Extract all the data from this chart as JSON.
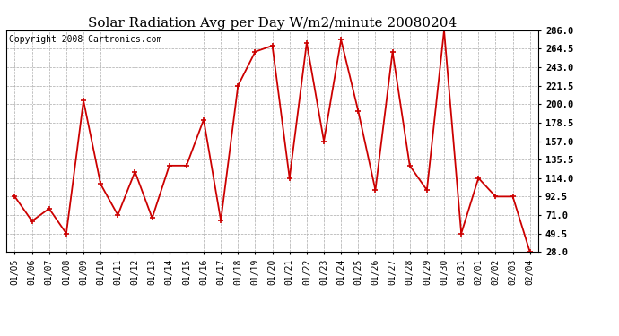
{
  "title": "Solar Radiation Avg per Day W/m2/minute 20080204",
  "copyright": "Copyright 2008 Cartronics.com",
  "dates": [
    "01/05",
    "01/06",
    "01/07",
    "01/08",
    "01/09",
    "01/10",
    "01/11",
    "01/12",
    "01/13",
    "01/14",
    "01/15",
    "01/16",
    "01/17",
    "01/18",
    "01/19",
    "01/20",
    "01/21",
    "01/22",
    "01/23",
    "01/24",
    "01/25",
    "01/26",
    "01/27",
    "01/28",
    "01/29",
    "01/30",
    "01/31",
    "02/01",
    "02/02",
    "02/03",
    "02/04"
  ],
  "values": [
    92.5,
    64.0,
    78.5,
    49.5,
    204.0,
    107.0,
    71.0,
    121.5,
    67.5,
    128.5,
    128.5,
    182.0,
    64.5,
    221.5,
    261.0,
    268.0,
    114.0,
    271.5,
    157.0,
    275.0,
    192.0,
    100.0,
    261.0,
    128.5,
    100.0,
    286.0,
    49.5,
    114.0,
    92.5,
    92.5,
    28.0
  ],
  "line_color": "#cc0000",
  "marker": "+",
  "marker_size": 5,
  "marker_lw": 1.2,
  "line_width": 1.3,
  "bg_color": "#ffffff",
  "grid_color": "#aaaaaa",
  "ylim": [
    28.0,
    286.0
  ],
  "yticks": [
    28.0,
    49.5,
    71.0,
    92.5,
    114.0,
    135.5,
    157.0,
    178.5,
    200.0,
    221.5,
    243.0,
    264.5,
    286.0
  ],
  "title_fontsize": 11,
  "copyright_fontsize": 7,
  "tick_fontsize": 7,
  "ytick_fontsize": 7.5
}
